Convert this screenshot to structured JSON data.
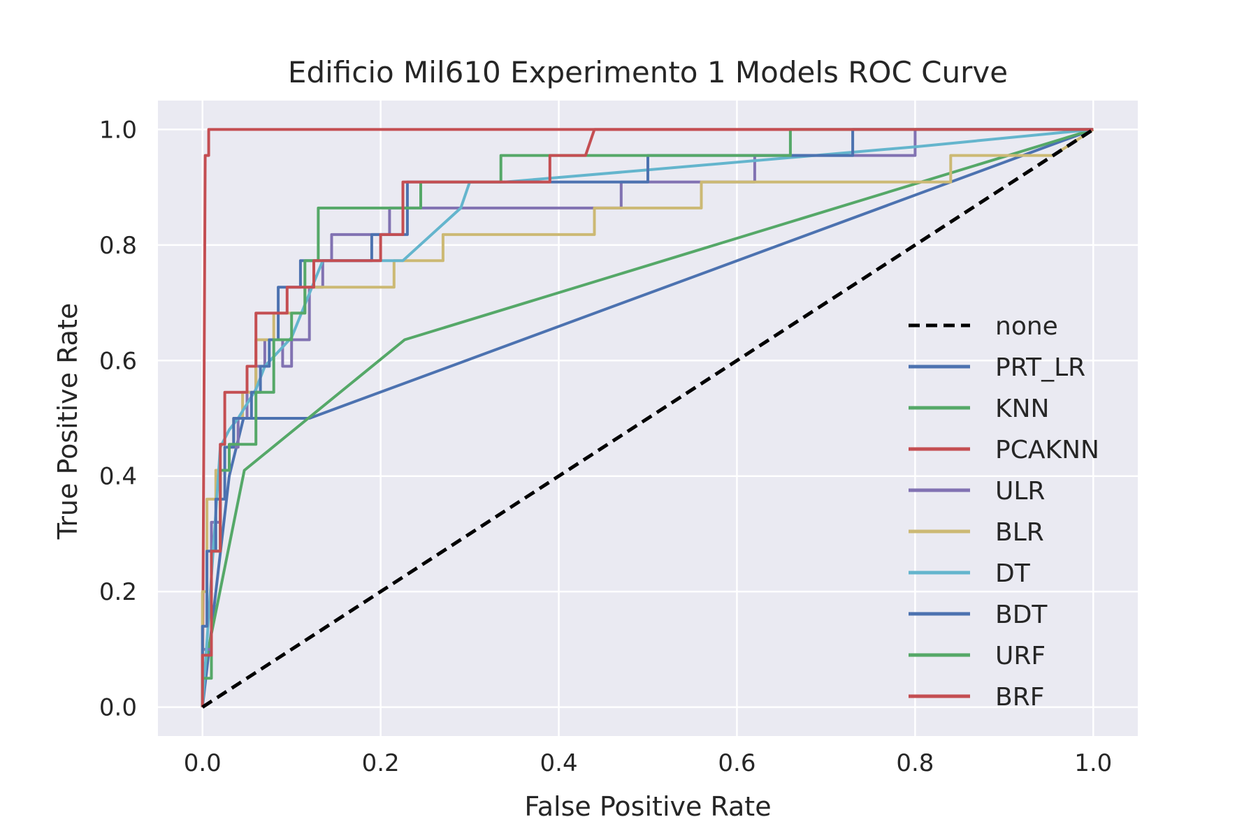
{
  "chart_data": {
    "type": "line",
    "title": "Edificio Mil610 Experimento 1 Models ROC Curve",
    "xlabel": "False Positive Rate",
    "ylabel": "True Positive Rate",
    "xlim": [
      -0.05,
      1.05
    ],
    "ylim": [
      -0.05,
      1.05
    ],
    "xticks": [
      "0.0",
      "0.2",
      "0.4",
      "0.6",
      "0.8",
      "1.0"
    ],
    "yticks": [
      "0.0",
      "0.2",
      "0.4",
      "0.6",
      "0.8",
      "1.0"
    ],
    "grid": true,
    "legend_position": "center-right",
    "series": [
      {
        "name": "none",
        "color": "#000000",
        "dashed": true,
        "x": [
          0,
          1
        ],
        "y": [
          0,
          1
        ]
      },
      {
        "name": "PRT_LR",
        "color": "#4c72b0",
        "x": [
          0,
          0.03,
          0.046,
          0.12,
          1
        ],
        "y": [
          0,
          0.4,
          0.5,
          0.5,
          1
        ]
      },
      {
        "name": "KNN",
        "color": "#55a868",
        "x": [
          0,
          0.047,
          0.227,
          1
        ],
        "y": [
          0.05,
          0.41,
          0.636,
          1
        ]
      },
      {
        "name": "PCAKNN",
        "color": "#c44e52",
        "x": [
          0,
          0.003,
          0.003,
          0.007,
          0.007,
          1
        ],
        "y": [
          0,
          0.955,
          0.955,
          0.955,
          1,
          1
        ]
      },
      {
        "name": "ULR",
        "color": "#8172b2",
        "x": [
          0,
          0,
          0.01,
          0.01,
          0.02,
          0.02,
          0.03,
          0.03,
          0.04,
          0.04,
          0.05,
          0.05,
          0.06,
          0.06,
          0.07,
          0.07,
          0.09,
          0.09,
          0.1,
          0.1,
          0.12,
          0.12,
          0.135,
          0.135,
          0.145,
          0.145,
          0.21,
          0.21,
          0.25,
          0.25,
          0.47,
          0.47,
          0.62,
          0.62,
          0.8,
          0.8,
          1
        ],
        "y": [
          0,
          0.1,
          0.1,
          0.32,
          0.32,
          0.41,
          0.41,
          0.45,
          0.45,
          0.5,
          0.5,
          0.545,
          0.545,
          0.59,
          0.59,
          0.636,
          0.636,
          0.59,
          0.59,
          0.636,
          0.636,
          0.727,
          0.727,
          0.773,
          0.773,
          0.818,
          0.818,
          0.864,
          0.864,
          0.864,
          0.864,
          0.909,
          0.909,
          0.955,
          0.955,
          1,
          1
        ]
      },
      {
        "name": "BLR",
        "color": "#ccb974",
        "x": [
          0,
          0,
          0.005,
          0.005,
          0.015,
          0.015,
          0.025,
          0.025,
          0.035,
          0.035,
          0.045,
          0.045,
          0.06,
          0.06,
          0.08,
          0.08,
          0.1,
          0.1,
          0.115,
          0.115,
          0.215,
          0.215,
          0.27,
          0.27,
          0.44,
          0.44,
          0.56,
          0.56,
          0.84,
          0.84,
          0.955,
          0.955,
          1
        ],
        "y": [
          0,
          0.2,
          0.2,
          0.36,
          0.36,
          0.41,
          0.41,
          0.45,
          0.45,
          0.5,
          0.5,
          0.545,
          0.545,
          0.636,
          0.636,
          0.682,
          0.682,
          0.682,
          0.682,
          0.727,
          0.727,
          0.773,
          0.773,
          0.818,
          0.818,
          0.864,
          0.864,
          0.909,
          0.909,
          0.955,
          0.955,
          0.955,
          1
        ]
      },
      {
        "name": "DT",
        "color": "#64b5cd",
        "x": [
          0,
          0.02,
          0.03,
          0.04,
          0.06,
          0.07,
          0.1,
          0.135,
          0.225,
          0.29,
          0.3,
          0.34,
          0.5,
          0.8,
          1
        ],
        "y": [
          0,
          0.45,
          0.48,
          0.5,
          0.55,
          0.59,
          0.64,
          0.773,
          0.773,
          0.864,
          0.909,
          0.909,
          0.93,
          0.97,
          1
        ]
      },
      {
        "name": "BDT",
        "color": "#4c72b0",
        "x": [
          0,
          0,
          0.005,
          0.005,
          0.015,
          0.015,
          0.025,
          0.025,
          0.035,
          0.035,
          0.045,
          0.045,
          0.055,
          0.055,
          0.065,
          0.065,
          0.075,
          0.075,
          0.085,
          0.085,
          0.095,
          0.095,
          0.11,
          0.11,
          0.13,
          0.13,
          0.19,
          0.19,
          0.23,
          0.23,
          0.3,
          0.3,
          0.5,
          0.5,
          0.73,
          0.73,
          1
        ],
        "y": [
          0,
          0.14,
          0.14,
          0.27,
          0.27,
          0.36,
          0.36,
          0.45,
          0.45,
          0.5,
          0.5,
          0.5,
          0.5,
          0.545,
          0.545,
          0.59,
          0.59,
          0.636,
          0.636,
          0.727,
          0.727,
          0.727,
          0.727,
          0.773,
          0.773,
          0.773,
          0.773,
          0.818,
          0.818,
          0.909,
          0.909,
          0.909,
          0.909,
          0.955,
          0.955,
          1,
          1
        ]
      },
      {
        "name": "URF",
        "color": "#55a868",
        "x": [
          0,
          0,
          0.01,
          0.01,
          0.02,
          0.02,
          0.03,
          0.03,
          0.06,
          0.06,
          0.08,
          0.08,
          0.1,
          0.1,
          0.115,
          0.115,
          0.13,
          0.13,
          0.245,
          0.245,
          0.335,
          0.335,
          0.66,
          0.66,
          1
        ],
        "y": [
          0,
          0.05,
          0.05,
          0.27,
          0.27,
          0.41,
          0.41,
          0.455,
          0.455,
          0.545,
          0.545,
          0.636,
          0.636,
          0.682,
          0.682,
          0.773,
          0.773,
          0.864,
          0.864,
          0.909,
          0.909,
          0.955,
          0.955,
          1,
          1
        ]
      },
      {
        "name": "BRF",
        "color": "#c44e52",
        "x": [
          0,
          0,
          0.01,
          0.01,
          0.02,
          0.02,
          0.025,
          0.025,
          0.05,
          0.05,
          0.06,
          0.06,
          0.095,
          0.095,
          0.11,
          0.11,
          0.125,
          0.125,
          0.2,
          0.2,
          0.225,
          0.225,
          0.39,
          0.39,
          0.43,
          0.44,
          1
        ],
        "y": [
          0,
          0.09,
          0.09,
          0.27,
          0.27,
          0.455,
          0.455,
          0.545,
          0.545,
          0.59,
          0.59,
          0.682,
          0.682,
          0.727,
          0.727,
          0.727,
          0.727,
          0.773,
          0.773,
          0.818,
          0.818,
          0.909,
          0.909,
          0.955,
          0.955,
          1,
          1
        ]
      }
    ]
  }
}
